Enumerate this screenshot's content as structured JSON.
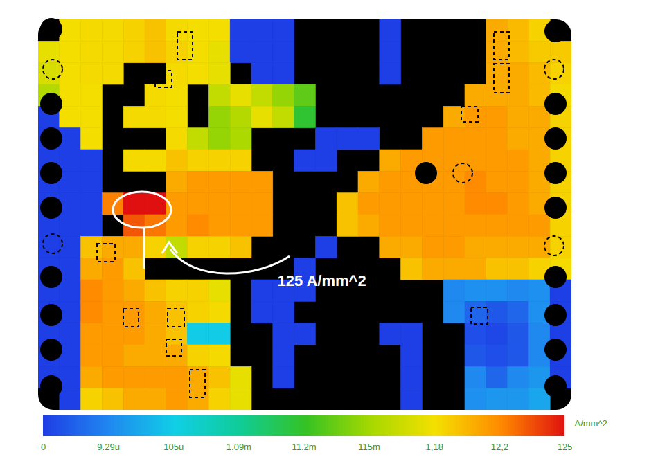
{
  "chart_data": {
    "type": "heatmap",
    "annotations": [
      {
        "text": "125 A/mm^2"
      }
    ],
    "colorbar": {
      "label": "A/mm^2",
      "range": [
        0,
        125
      ],
      "ticks": [
        0,
        {
          "value": 9.29e-06,
          "label": "9.29u"
        },
        {
          "value": 0.000105,
          "label": "105u"
        },
        {
          "value": 0.00109,
          "label": "1.09m"
        },
        {
          "value": 0.0112,
          "label": "11.2m"
        },
        {
          "value": 0.115,
          "label": "115m"
        },
        {
          "value": 1.18,
          "label": "1,18"
        },
        {
          "value": 12.2,
          "label": "12,2"
        },
        125
      ]
    },
    "cells": [
      [
        null,
        1.5,
        2,
        2,
        3,
        5,
        2,
        1.5,
        1.5,
        0,
        0,
        0,
        null,
        null,
        null,
        null,
        0,
        null,
        null,
        null,
        null,
        8,
        6,
        3,
        null
      ],
      [
        1,
        1.5,
        2,
        2,
        3,
        5,
        3,
        1.5,
        1,
        0,
        0,
        0,
        null,
        null,
        null,
        null,
        0,
        null,
        null,
        null,
        null,
        8,
        6,
        4,
        4
      ],
      [
        0.8,
        1.5,
        2,
        2,
        null,
        null,
        2,
        1.5,
        1,
        null,
        0,
        0,
        null,
        null,
        null,
        null,
        0,
        null,
        null,
        null,
        null,
        8,
        8,
        6,
        3
      ],
      [
        0.3,
        1.5,
        1.5,
        null,
        null,
        2,
        1.5,
        null,
        0.5,
        1,
        0.5,
        0.1,
        0.05,
        null,
        null,
        null,
        null,
        null,
        null,
        null,
        8,
        8,
        8,
        6,
        2
      ],
      [
        0,
        1.5,
        1.5,
        null,
        2,
        2,
        1.5,
        null,
        0.1,
        0.3,
        1,
        0.5,
        0.01,
        null,
        null,
        null,
        null,
        null,
        null,
        8,
        10,
        10,
        8,
        8,
        3
      ],
      [
        0,
        0,
        1.5,
        null,
        null,
        null,
        2,
        0.5,
        0.1,
        0.2,
        null,
        null,
        null,
        0,
        0,
        0,
        null,
        null,
        10,
        10,
        10,
        10,
        8,
        8,
        3
      ],
      [
        0,
        0,
        0,
        null,
        2,
        2,
        5,
        3,
        3,
        3,
        null,
        null,
        0,
        0,
        null,
        null,
        8,
        10,
        10,
        10,
        10,
        10,
        10,
        8,
        3
      ],
      [
        0,
        0,
        0,
        null,
        null,
        null,
        8,
        10,
        10,
        10,
        10,
        null,
        null,
        null,
        null,
        8,
        10,
        10,
        10,
        10,
        12,
        10,
        10,
        8,
        3
      ],
      [
        0,
        0,
        0,
        20,
        125,
        125,
        10,
        10,
        10,
        10,
        10,
        null,
        null,
        null,
        5,
        10,
        10,
        10,
        10,
        10,
        12,
        12,
        10,
        8,
        3
      ],
      [
        0,
        0,
        0,
        null,
        60,
        30,
        10,
        12,
        10,
        10,
        10,
        null,
        null,
        null,
        5,
        8,
        10,
        10,
        10,
        10,
        10,
        10,
        10,
        10,
        3
      ],
      [
        0,
        0,
        5,
        8,
        8,
        3,
        0.5,
        3,
        3,
        5,
        null,
        null,
        null,
        0,
        null,
        null,
        8,
        8,
        10,
        10,
        8,
        8,
        8,
        8,
        3
      ],
      [
        0,
        0,
        8,
        10,
        5,
        null,
        null,
        null,
        null,
        null,
        null,
        null,
        0,
        null,
        null,
        null,
        null,
        5,
        8,
        8,
        8,
        5,
        5,
        3,
        2
      ],
      [
        0,
        0,
        12,
        10,
        8,
        5,
        3,
        3,
        1,
        null,
        0,
        0,
        0,
        null,
        null,
        null,
        null,
        null,
        null,
        1e-05,
        2e-05,
        2e-05,
        1e-05,
        2e-05,
        0
      ],
      [
        0,
        0,
        12,
        10,
        10,
        8,
        5,
        3,
        2,
        null,
        0,
        0,
        null,
        null,
        null,
        null,
        null,
        null,
        null,
        1e-05,
        5e-06,
        3e-06,
        5e-06,
        2e-05,
        0
      ],
      [
        0,
        0,
        10,
        10,
        10,
        8,
        5,
        0.0001,
        0.0001,
        null,
        null,
        0,
        0,
        null,
        null,
        null,
        0,
        0,
        null,
        null,
        2e-06,
        1e-06,
        3e-06,
        1e-05,
        0
      ],
      [
        0,
        0,
        10,
        10,
        8,
        8,
        8,
        3,
        2,
        null,
        null,
        0,
        null,
        null,
        null,
        null,
        null,
        0,
        null,
        null,
        3e-06,
        2e-06,
        3e-06,
        1e-05,
        0
      ],
      [
        0,
        0,
        8,
        10,
        10,
        10,
        10,
        8,
        5,
        1,
        null,
        0,
        null,
        null,
        null,
        null,
        null,
        0,
        null,
        null,
        1e-05,
        5e-06,
        1e-05,
        3e-05,
        0
      ],
      [
        null,
        0,
        3,
        5,
        8,
        8,
        10,
        8,
        3,
        1,
        null,
        null,
        null,
        null,
        null,
        null,
        null,
        0,
        null,
        null,
        2e-05,
        3e-05,
        3e-05,
        5e-05,
        null
      ]
    ]
  }
}
